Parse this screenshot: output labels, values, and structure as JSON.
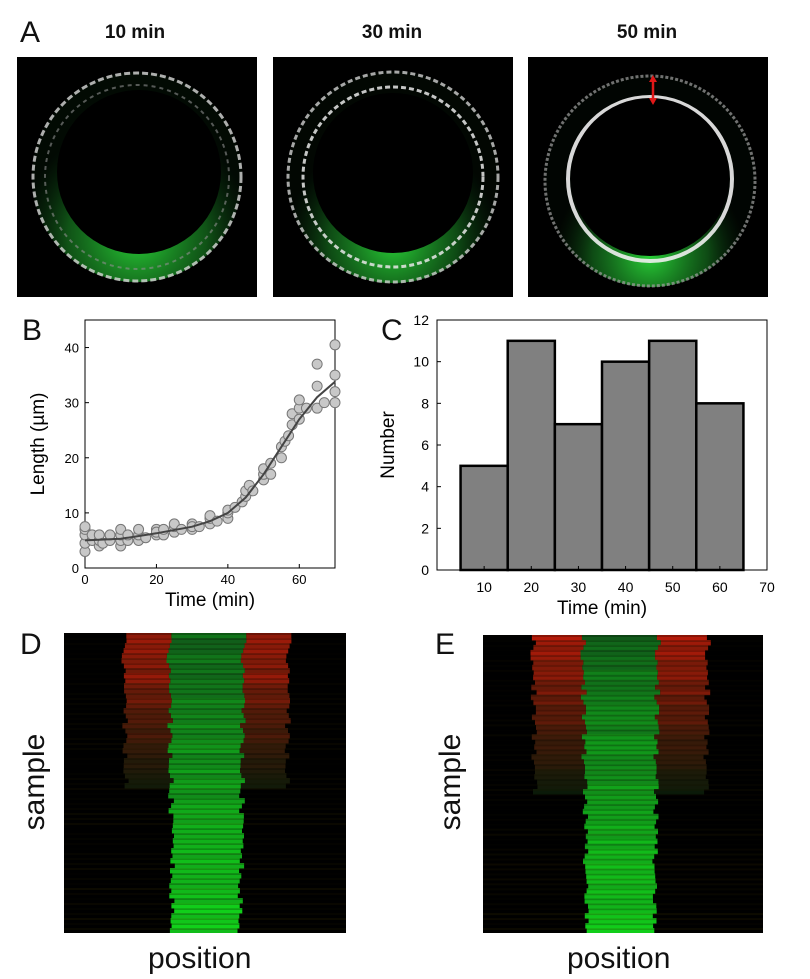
{
  "panel_a": {
    "letter": "A",
    "frames": [
      {
        "label": "10 min"
      },
      {
        "label": "30 min"
      },
      {
        "label": "50 min"
      }
    ]
  },
  "panel_b": {
    "letter": "B"
  },
  "panel_c": {
    "letter": "C"
  },
  "panel_d": {
    "letter": "D",
    "ylabel": "sample",
    "xlabel": "position"
  },
  "panel_e": {
    "letter": "E",
    "ylabel": "sample",
    "xlabel": "position"
  },
  "chart_data": [
    {
      "type": "scatter",
      "panel": "B",
      "xlabel": "Time (min)",
      "ylabel": "Length (µm)",
      "xlim": [
        0,
        70
      ],
      "ylim": [
        0,
        45
      ],
      "xticks": [
        0,
        20,
        40,
        60
      ],
      "yticks": [
        0,
        10,
        20,
        30,
        40
      ],
      "grid": false,
      "points": [
        [
          0,
          3
        ],
        [
          0,
          4.5
        ],
        [
          0,
          6
        ],
        [
          0,
          7
        ],
        [
          0,
          7.5
        ],
        [
          2,
          5
        ],
        [
          2,
          6
        ],
        [
          4,
          4
        ],
        [
          4,
          5
        ],
        [
          4,
          6
        ],
        [
          5,
          4.5
        ],
        [
          7,
          5
        ],
        [
          7,
          6
        ],
        [
          10,
          4
        ],
        [
          10,
          5
        ],
        [
          10,
          6
        ],
        [
          10,
          7
        ],
        [
          12,
          5
        ],
        [
          12,
          6
        ],
        [
          15,
          5
        ],
        [
          15,
          6
        ],
        [
          15,
          7
        ],
        [
          17,
          5.5
        ],
        [
          20,
          6
        ],
        [
          20,
          7
        ],
        [
          20,
          6.5
        ],
        [
          22,
          6
        ],
        [
          22,
          7
        ],
        [
          25,
          6.5
        ],
        [
          25,
          7.5
        ],
        [
          25,
          8
        ],
        [
          27,
          7
        ],
        [
          30,
          7
        ],
        [
          30,
          8
        ],
        [
          30,
          7.5
        ],
        [
          32,
          7.5
        ],
        [
          35,
          8
        ],
        [
          35,
          9
        ],
        [
          35,
          9.5
        ],
        [
          37,
          8.5
        ],
        [
          40,
          9
        ],
        [
          40,
          10
        ],
        [
          40,
          10.5
        ],
        [
          42,
          11
        ],
        [
          44,
          12
        ],
        [
          45,
          13
        ],
        [
          45,
          14
        ],
        [
          46,
          15
        ],
        [
          47,
          14
        ],
        [
          50,
          16
        ],
        [
          50,
          17
        ],
        [
          50,
          18
        ],
        [
          52,
          17
        ],
        [
          52,
          19
        ],
        [
          55,
          20
        ],
        [
          55,
          22
        ],
        [
          56,
          23
        ],
        [
          57,
          24
        ],
        [
          58,
          26
        ],
        [
          58,
          28
        ],
        [
          60,
          27
        ],
        [
          60,
          29
        ],
        [
          60,
          30.5
        ],
        [
          62,
          29
        ],
        [
          65,
          29
        ],
        [
          65,
          33
        ],
        [
          65,
          37
        ],
        [
          67,
          30
        ],
        [
          70,
          30
        ],
        [
          70,
          32
        ],
        [
          70,
          35
        ],
        [
          70,
          40.5
        ]
      ],
      "fit_line": [
        [
          0,
          5
        ],
        [
          10,
          5.3
        ],
        [
          20,
          6.3
        ],
        [
          30,
          7.5
        ],
        [
          35,
          8.5
        ],
        [
          40,
          10
        ],
        [
          45,
          12.8
        ],
        [
          50,
          17
        ],
        [
          55,
          22
        ],
        [
          60,
          27
        ],
        [
          65,
          31
        ],
        [
          70,
          33.8
        ]
      ]
    },
    {
      "type": "bar",
      "panel": "C",
      "xlabel": "Time (min)",
      "ylabel": "Number",
      "categories": [
        10,
        20,
        30,
        40,
        50,
        60
      ],
      "values": [
        5,
        11,
        7,
        10,
        11,
        8
      ],
      "xlim": [
        0,
        70
      ],
      "ylim": [
        0,
        12
      ],
      "xticks": [
        10,
        20,
        30,
        40,
        50,
        60,
        70
      ],
      "yticks": [
        0,
        2,
        4,
        6,
        8,
        10,
        12
      ],
      "bar_color": "#808080",
      "grid": false
    }
  ]
}
